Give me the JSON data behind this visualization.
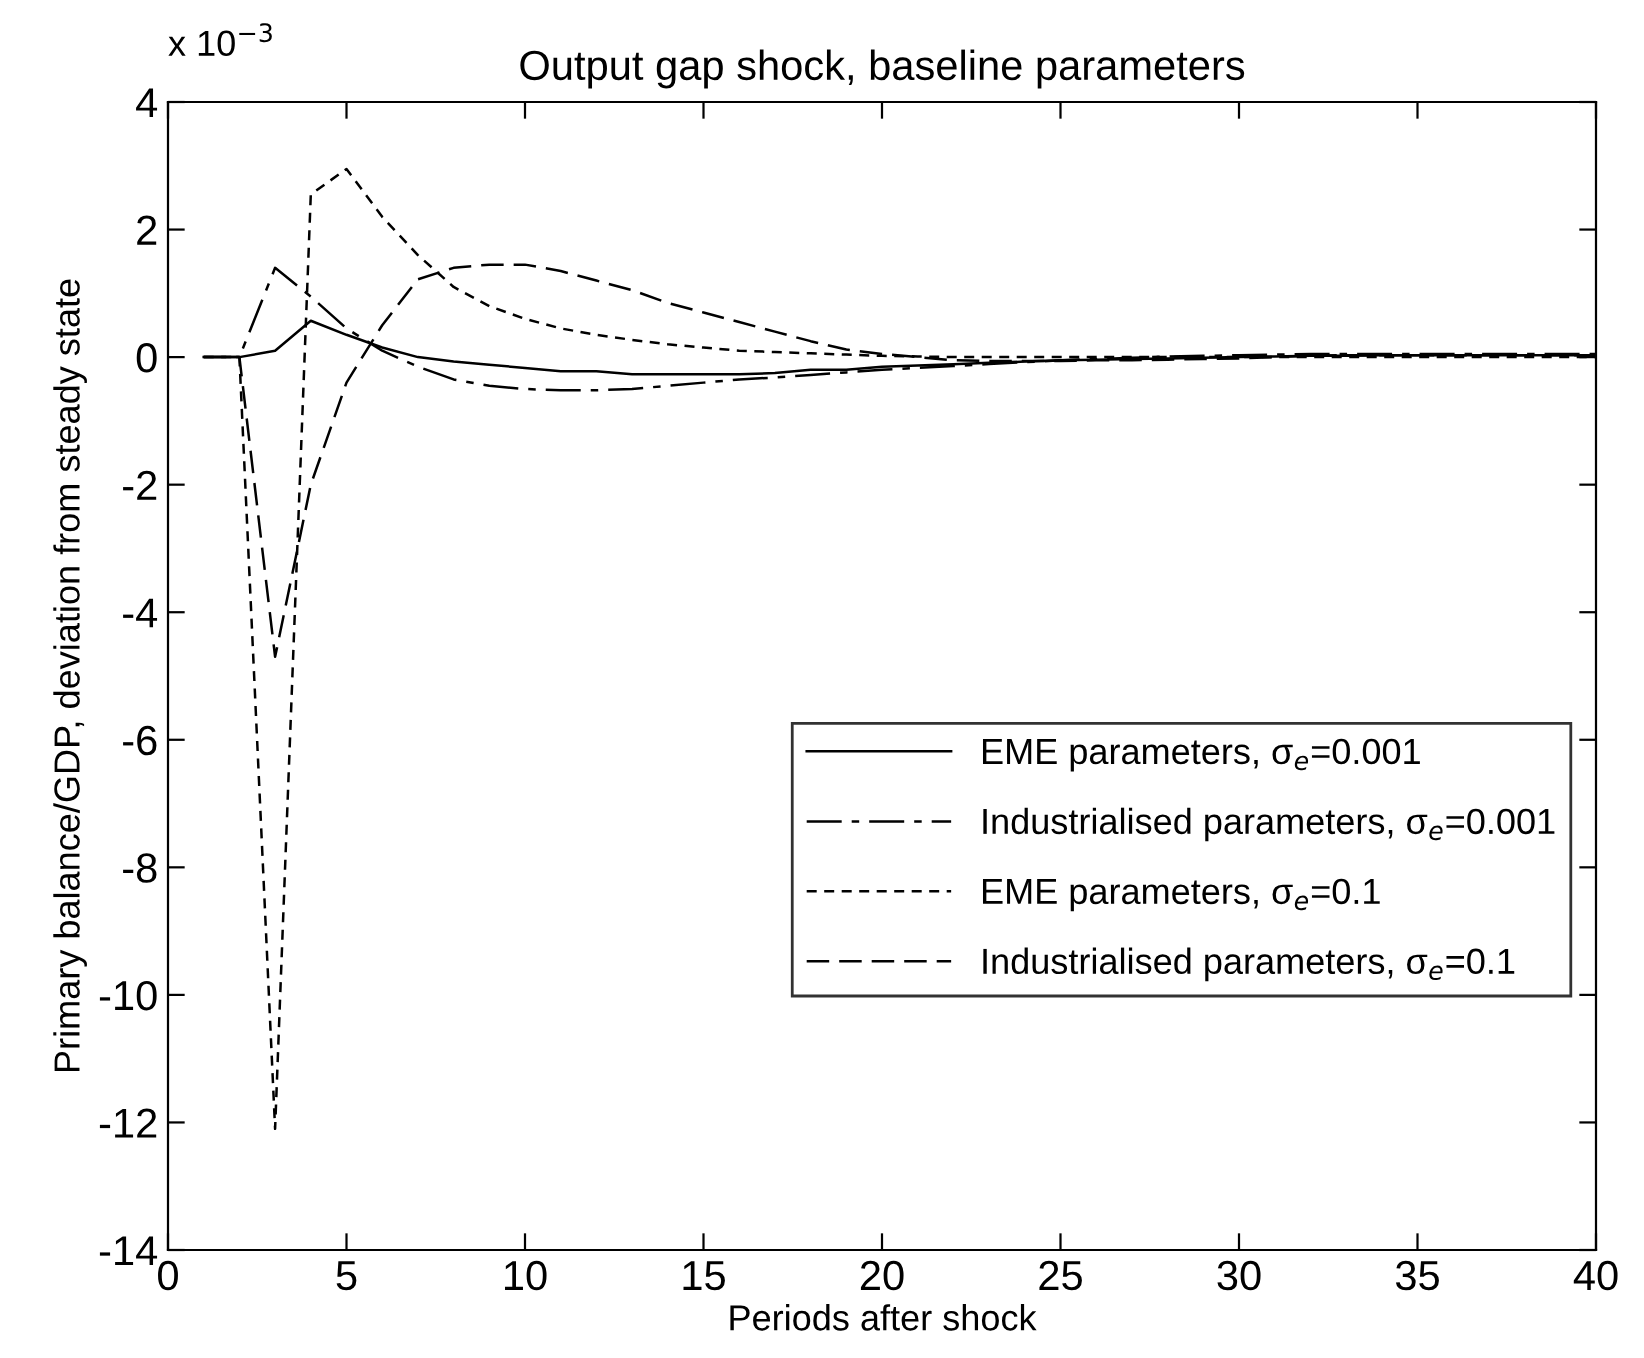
{
  "chart_data": {
    "type": "line",
    "title": "Output gap shock, baseline parameters",
    "xlabel": "Periods after shock",
    "ylabel": "Primary balance/GDP, deviation from steady state",
    "annotations": [
      "x 10$^{−3}$"
    ],
    "x": [
      1,
      2,
      3,
      4,
      5,
      6,
      7,
      8,
      9,
      10,
      11,
      12,
      13,
      14,
      15,
      16,
      17,
      18,
      19,
      20,
      21,
      22,
      23,
      24,
      25,
      26,
      27,
      28,
      29,
      30,
      31,
      32,
      33,
      34,
      35,
      36,
      37,
      38,
      39,
      40
    ],
    "series": [
      {
        "name": "EME parameters, σ$_{e}$=0.001",
        "color": "#000000",
        "line_style": "solid",
        "values": [
          0,
          0,
          0.1,
          0.57,
          0.35,
          0.15,
          0,
          -0.07,
          -0.12,
          -0.17,
          -0.22,
          -0.22,
          -0.27,
          -0.27,
          -0.27,
          -0.27,
          -0.25,
          -0.2,
          -0.2,
          -0.15,
          -0.13,
          -0.11,
          -0.09,
          -0.07,
          -0.05,
          -0.04,
          -0.03,
          -0.02,
          -0.01,
          0,
          0.01,
          0.02,
          0.02,
          0.03,
          0.03,
          0.03,
          0.03,
          0.03,
          0.03,
          0.03
        ]
      },
      {
        "name": "Industrialised parameters, σ$_{e}$=0.001",
        "color": "#000000",
        "line_style": "dashdot",
        "values": [
          0,
          0,
          1.4,
          0.95,
          0.45,
          0.1,
          -0.15,
          -0.35,
          -0.45,
          -0.5,
          -0.52,
          -0.52,
          -0.5,
          -0.45,
          -0.4,
          -0.35,
          -0.32,
          -0.28,
          -0.24,
          -0.2,
          -0.17,
          -0.14,
          -0.11,
          -0.08,
          -0.05,
          -0.03,
          -0.01,
          0.01,
          0.02,
          0.03,
          0.04,
          0.05,
          0.05,
          0.05,
          0.05,
          0.05,
          0.05,
          0.05,
          0.05,
          0.05
        ]
      },
      {
        "name": "EME parameters, σ$_{e}$=0.1",
        "color": "#000000",
        "line_style": "dotted",
        "values": [
          0,
          0,
          -12.1,
          2.55,
          2.95,
          2.2,
          1.6,
          1.1,
          0.8,
          0.6,
          0.45,
          0.35,
          0.27,
          0.2,
          0.15,
          0.1,
          0.08,
          0.06,
          0.04,
          0.02,
          0.01,
          0,
          0,
          0,
          0,
          0,
          0,
          0,
          0,
          0,
          0,
          0,
          0,
          0,
          0,
          0,
          0,
          0,
          0,
          0
        ]
      },
      {
        "name": "Industrialised parameters, σ$_{e}$=0.1",
        "color": "#000000",
        "line_style": "dashed",
        "values": [
          0,
          0,
          -4.7,
          -2.0,
          -0.4,
          0.5,
          1.22,
          1.4,
          1.45,
          1.45,
          1.35,
          1.2,
          1.05,
          0.85,
          0.7,
          0.55,
          0.4,
          0.25,
          0.12,
          0.05,
          0,
          -0.05,
          -0.06,
          -0.06,
          -0.06,
          -0.05,
          -0.05,
          -0.04,
          -0.03,
          -0.02,
          0,
          0.02,
          0.03,
          0.03,
          0.03,
          0.03,
          0.03,
          0.03,
          0.03,
          0.03
        ]
      }
    ],
    "xlim": [
      0,
      40
    ],
    "xticks": [
      0,
      5,
      10,
      15,
      20,
      25,
      30,
      35,
      40
    ],
    "ylim": [
      -14,
      4
    ],
    "yticks": [
      -14,
      -12,
      -10,
      -8,
      -6,
      -4,
      -2,
      0,
      2,
      4
    ],
    "legend": "right",
    "grid": false,
    "marker": "none"
  }
}
